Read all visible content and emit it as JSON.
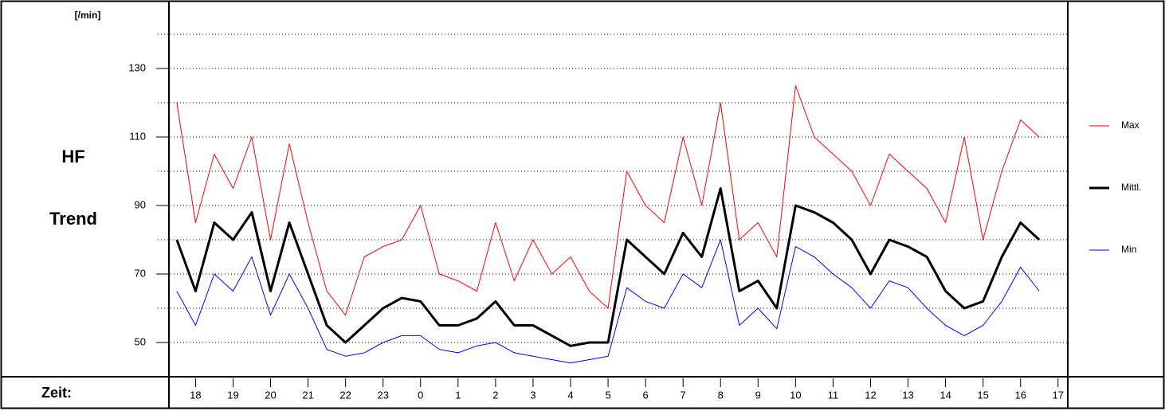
{
  "chart_data": {
    "type": "line",
    "ylabel": "[/min]",
    "title_lines": [
      "HF",
      "Trend"
    ],
    "xlabel": "Zeit:",
    "x": [
      17.5,
      18,
      18.5,
      19,
      19.5,
      20,
      20.5,
      21,
      21.5,
      22,
      22.5,
      23,
      23.5,
      24,
      24.5,
      25,
      25.5,
      26,
      26.5,
      27,
      27.5,
      28,
      28.5,
      29,
      29.5,
      30,
      30.5,
      31,
      31.5,
      32,
      32.5,
      33,
      33.5,
      34,
      34.5,
      35,
      35.5,
      36,
      36.5,
      37,
      37.5,
      38,
      38.5,
      39,
      39.5,
      40,
      40.5
    ],
    "series": [
      {
        "name": "Max",
        "color": "#ff0000",
        "line_width": 1,
        "values": [
          120,
          85,
          105,
          95,
          110,
          80,
          108,
          85,
          65,
          58,
          75,
          78,
          80,
          90,
          70,
          68,
          65,
          85,
          68,
          80,
          70,
          75,
          65,
          60,
          100,
          90,
          85,
          110,
          90,
          120,
          80,
          85,
          75,
          125,
          110,
          105,
          100,
          90,
          105,
          100,
          95,
          85,
          110,
          80,
          100,
          115,
          110
        ]
      },
      {
        "name": "Mittl.",
        "color": "#000000",
        "line_width": 3,
        "values": [
          80,
          65,
          85,
          80,
          88,
          65,
          85,
          70,
          55,
          50,
          55,
          60,
          63,
          62,
          55,
          55,
          57,
          62,
          55,
          55,
          52,
          49,
          50,
          50,
          80,
          75,
          70,
          82,
          75,
          95,
          65,
          68,
          60,
          90,
          88,
          85,
          80,
          70,
          80,
          78,
          75,
          65,
          60,
          62,
          75,
          85,
          80
        ]
      },
      {
        "name": "Min",
        "color": "#0000ff",
        "line_width": 1,
        "values": [
          65,
          55,
          70,
          65,
          75,
          58,
          70,
          60,
          48,
          46,
          47,
          50,
          52,
          52,
          48,
          47,
          49,
          50,
          47,
          46,
          45,
          44,
          45,
          46,
          66,
          62,
          60,
          70,
          66,
          80,
          55,
          60,
          54,
          78,
          75,
          70,
          66,
          60,
          68,
          66,
          60,
          55,
          52,
          55,
          62,
          72,
          65
        ]
      }
    ],
    "xlim": [
      17.29,
      41.26
    ],
    "ylim": [
      40,
      149.3
    ],
    "yticks": [
      50,
      70,
      90,
      110,
      130
    ],
    "grid_lines": [
      50,
      60,
      70,
      80,
      90,
      100,
      110,
      120,
      130,
      140
    ],
    "xticks": [
      18,
      19,
      20,
      21,
      22,
      23,
      {
        "value": 24,
        "label": "0"
      },
      {
        "value": 25,
        "label": "1"
      },
      {
        "value": 26,
        "label": "2"
      },
      {
        "value": 27,
        "label": "3"
      },
      {
        "value": 28,
        "label": "4"
      },
      {
        "value": 29,
        "label": "5"
      },
      {
        "value": 30,
        "label": "6"
      },
      {
        "value": 31,
        "label": "7"
      },
      {
        "value": 32,
        "label": "8"
      },
      {
        "value": 33,
        "label": "9"
      },
      {
        "value": 34,
        "label": "10"
      },
      {
        "value": 35,
        "label": "11"
      },
      {
        "value": 36,
        "label": "12"
      },
      {
        "value": 37,
        "label": "13"
      },
      {
        "value": 38,
        "label": "14"
      },
      {
        "value": 39,
        "label": "15"
      },
      {
        "value": 40,
        "label": "16"
      },
      {
        "value": 41,
        "label": "17"
      }
    ],
    "legend": "right"
  }
}
